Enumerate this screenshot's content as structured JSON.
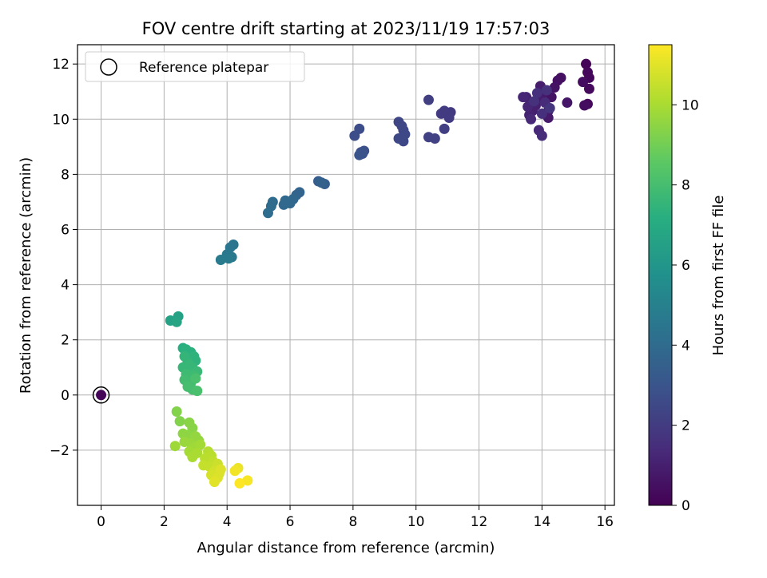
{
  "chart_data": {
    "type": "scatter",
    "title": "FOV centre drift starting at 2023/11/19 17:57:03",
    "xlabel": "Angular distance from reference (arcmin)",
    "ylabel": "Rotation from reference (arcmin)",
    "xlim": [
      -0.75,
      16.3
    ],
    "ylim": [
      -4.0,
      12.7
    ],
    "x_ticks": [
      0,
      2,
      4,
      6,
      8,
      10,
      12,
      14,
      16
    ],
    "y_ticks": [
      -2,
      0,
      2,
      4,
      6,
      8,
      10,
      12
    ],
    "y_tick_labels": [
      "−2",
      "0",
      "2",
      "4",
      "6",
      "8",
      "10",
      "12"
    ],
    "grid": true,
    "legend": {
      "placement": "upper-left",
      "entries": [
        "Reference platepar"
      ]
    },
    "reference_point": {
      "x": 0,
      "y": 0
    },
    "colorbar": {
      "label": "Hours from first FF file",
      "colormap": "viridis",
      "range": [
        0,
        11.5
      ],
      "ticks": [
        0,
        2,
        4,
        6,
        8,
        10
      ]
    },
    "points": [
      {
        "x": 0,
        "y": 0,
        "h": 0.1
      },
      {
        "x": 15.4,
        "y": 12.0,
        "h": 0.1
      },
      {
        "x": 15.45,
        "y": 11.7,
        "h": 0.2
      },
      {
        "x": 15.5,
        "y": 11.5,
        "h": 0.2
      },
      {
        "x": 15.5,
        "y": 11.1,
        "h": 0.3
      },
      {
        "x": 15.45,
        "y": 10.55,
        "h": 0.3
      },
      {
        "x": 15.35,
        "y": 10.5,
        "h": 0.4
      },
      {
        "x": 15.3,
        "y": 11.35,
        "h": 0.4
      },
      {
        "x": 14.6,
        "y": 11.5,
        "h": 0.5
      },
      {
        "x": 14.5,
        "y": 11.4,
        "h": 0.5
      },
      {
        "x": 14.4,
        "y": 11.15,
        "h": 0.6
      },
      {
        "x": 14.3,
        "y": 10.8,
        "h": 0.6
      },
      {
        "x": 14.8,
        "y": 10.6,
        "h": 0.7
      },
      {
        "x": 14.2,
        "y": 10.3,
        "h": 0.7
      },
      {
        "x": 14.2,
        "y": 10.05,
        "h": 0.8
      },
      {
        "x": 14.0,
        "y": 10.9,
        "h": 0.8
      },
      {
        "x": 13.95,
        "y": 11.2,
        "h": 0.9
      },
      {
        "x": 13.9,
        "y": 10.7,
        "h": 0.9
      },
      {
        "x": 13.8,
        "y": 10.5,
        "h": 1.0
      },
      {
        "x": 13.7,
        "y": 10.3,
        "h": 1.0
      },
      {
        "x": 13.6,
        "y": 10.15,
        "h": 1.1
      },
      {
        "x": 13.5,
        "y": 10.8,
        "h": 1.1
      },
      {
        "x": 13.4,
        "y": 10.8,
        "h": 1.2
      },
      {
        "x": 13.55,
        "y": 10.45,
        "h": 1.2
      },
      {
        "x": 13.65,
        "y": 10.0,
        "h": 1.3
      },
      {
        "x": 13.9,
        "y": 9.6,
        "h": 1.3
      },
      {
        "x": 14.0,
        "y": 9.4,
        "h": 1.4
      },
      {
        "x": 14.1,
        "y": 10.6,
        "h": 1.4
      },
      {
        "x": 14.0,
        "y": 10.2,
        "h": 1.5
      },
      {
        "x": 13.85,
        "y": 10.95,
        "h": 1.5
      },
      {
        "x": 14.15,
        "y": 11.05,
        "h": 1.6
      },
      {
        "x": 13.75,
        "y": 10.65,
        "h": 1.6
      },
      {
        "x": 14.25,
        "y": 10.4,
        "h": 1.7
      },
      {
        "x": 11.1,
        "y": 10.25,
        "h": 1.9
      },
      {
        "x": 11.05,
        "y": 10.05,
        "h": 2.0
      },
      {
        "x": 10.9,
        "y": 10.3,
        "h": 2.0
      },
      {
        "x": 10.8,
        "y": 10.2,
        "h": 2.0
      },
      {
        "x": 10.9,
        "y": 9.65,
        "h": 2.1
      },
      {
        "x": 10.4,
        "y": 10.7,
        "h": 2.1
      },
      {
        "x": 10.6,
        "y": 9.3,
        "h": 2.2
      },
      {
        "x": 10.4,
        "y": 9.35,
        "h": 2.2
      },
      {
        "x": 9.6,
        "y": 9.6,
        "h": 2.4
      },
      {
        "x": 9.45,
        "y": 9.9,
        "h": 2.4
      },
      {
        "x": 9.55,
        "y": 9.75,
        "h": 2.4
      },
      {
        "x": 9.65,
        "y": 9.45,
        "h": 2.5
      },
      {
        "x": 9.6,
        "y": 9.2,
        "h": 2.5
      },
      {
        "x": 9.45,
        "y": 9.3,
        "h": 2.5
      },
      {
        "x": 8.2,
        "y": 9.65,
        "h": 2.7
      },
      {
        "x": 8.05,
        "y": 9.4,
        "h": 2.7
      },
      {
        "x": 8.35,
        "y": 8.85,
        "h": 2.8
      },
      {
        "x": 8.25,
        "y": 8.8,
        "h": 2.8
      },
      {
        "x": 8.2,
        "y": 8.7,
        "h": 2.9
      },
      {
        "x": 8.3,
        "y": 8.75,
        "h": 2.9
      },
      {
        "x": 7.1,
        "y": 7.65,
        "h": 3.4
      },
      {
        "x": 6.9,
        "y": 7.75,
        "h": 3.4
      },
      {
        "x": 7.0,
        "y": 7.7,
        "h": 3.5
      },
      {
        "x": 6.3,
        "y": 7.35,
        "h": 3.7
      },
      {
        "x": 6.2,
        "y": 7.25,
        "h": 3.7
      },
      {
        "x": 6.1,
        "y": 7.1,
        "h": 3.8
      },
      {
        "x": 6.0,
        "y": 6.95,
        "h": 3.8
      },
      {
        "x": 5.85,
        "y": 7.05,
        "h": 3.9
      },
      {
        "x": 5.8,
        "y": 6.9,
        "h": 3.9
      },
      {
        "x": 5.45,
        "y": 7.0,
        "h": 4.0
      },
      {
        "x": 5.4,
        "y": 6.85,
        "h": 4.0
      },
      {
        "x": 5.3,
        "y": 6.6,
        "h": 4.1
      },
      {
        "x": 4.2,
        "y": 5.45,
        "h": 4.5
      },
      {
        "x": 4.1,
        "y": 5.35,
        "h": 4.5
      },
      {
        "x": 4.0,
        "y": 5.1,
        "h": 4.6
      },
      {
        "x": 4.15,
        "y": 5.0,
        "h": 4.6
      },
      {
        "x": 4.05,
        "y": 4.95,
        "h": 4.7
      },
      {
        "x": 3.8,
        "y": 4.9,
        "h": 4.7
      },
      {
        "x": 2.45,
        "y": 2.85,
        "h": 6.6
      },
      {
        "x": 2.2,
        "y": 2.7,
        "h": 6.6
      },
      {
        "x": 2.4,
        "y": 2.65,
        "h": 6.7
      },
      {
        "x": 2.6,
        "y": 1.7,
        "h": 7.2
      },
      {
        "x": 2.7,
        "y": 1.65,
        "h": 7.3
      },
      {
        "x": 2.85,
        "y": 1.55,
        "h": 7.3
      },
      {
        "x": 2.95,
        "y": 1.4,
        "h": 7.4
      },
      {
        "x": 3.0,
        "y": 1.25,
        "h": 7.4
      },
      {
        "x": 2.65,
        "y": 1.4,
        "h": 7.5
      },
      {
        "x": 2.75,
        "y": 1.2,
        "h": 7.5
      },
      {
        "x": 2.9,
        "y": 1.0,
        "h": 7.6
      },
      {
        "x": 2.6,
        "y": 1.0,
        "h": 7.6
      },
      {
        "x": 2.8,
        "y": 0.9,
        "h": 7.7
      },
      {
        "x": 3.05,
        "y": 0.85,
        "h": 7.7
      },
      {
        "x": 2.7,
        "y": 0.75,
        "h": 7.8
      },
      {
        "x": 2.95,
        "y": 0.7,
        "h": 7.8
      },
      {
        "x": 2.65,
        "y": 0.55,
        "h": 7.9
      },
      {
        "x": 2.85,
        "y": 0.45,
        "h": 7.9
      },
      {
        "x": 2.75,
        "y": 0.3,
        "h": 8.0
      },
      {
        "x": 2.9,
        "y": 0.2,
        "h": 8.0
      },
      {
        "x": 3.05,
        "y": 0.15,
        "h": 8.1
      },
      {
        "x": 3.0,
        "y": 0.6,
        "h": 8.1
      },
      {
        "x": 2.8,
        "y": 1.1,
        "h": 7.6
      },
      {
        "x": 2.4,
        "y": -0.6,
        "h": 9.3
      },
      {
        "x": 2.5,
        "y": -0.95,
        "h": 9.3
      },
      {
        "x": 2.8,
        "y": -1.0,
        "h": 9.4
      },
      {
        "x": 2.9,
        "y": -1.2,
        "h": 9.4
      },
      {
        "x": 2.6,
        "y": -1.4,
        "h": 9.5
      },
      {
        "x": 2.75,
        "y": -1.45,
        "h": 9.5
      },
      {
        "x": 3.0,
        "y": -1.5,
        "h": 9.6
      },
      {
        "x": 3.1,
        "y": -1.65,
        "h": 9.6
      },
      {
        "x": 2.65,
        "y": -1.7,
        "h": 9.7
      },
      {
        "x": 2.85,
        "y": -1.75,
        "h": 9.7
      },
      {
        "x": 2.35,
        "y": -1.85,
        "h": 9.8
      },
      {
        "x": 2.95,
        "y": -1.9,
        "h": 9.8
      },
      {
        "x": 3.15,
        "y": -1.8,
        "h": 9.9
      },
      {
        "x": 2.8,
        "y": -2.05,
        "h": 9.9
      },
      {
        "x": 3.05,
        "y": -2.1,
        "h": 10.0
      },
      {
        "x": 2.9,
        "y": -2.25,
        "h": 10.0
      },
      {
        "x": 3.4,
        "y": -2.05,
        "h": 10.2
      },
      {
        "x": 3.5,
        "y": -2.2,
        "h": 10.3
      },
      {
        "x": 3.3,
        "y": -2.3,
        "h": 10.3
      },
      {
        "x": 3.55,
        "y": -2.4,
        "h": 10.4
      },
      {
        "x": 3.25,
        "y": -2.55,
        "h": 10.5
      },
      {
        "x": 3.45,
        "y": -2.6,
        "h": 10.5
      },
      {
        "x": 3.7,
        "y": -2.5,
        "h": 10.6
      },
      {
        "x": 3.6,
        "y": -2.75,
        "h": 10.7
      },
      {
        "x": 3.75,
        "y": -2.85,
        "h": 10.8
      },
      {
        "x": 3.5,
        "y": -2.9,
        "h": 10.8
      },
      {
        "x": 3.7,
        "y": -3.0,
        "h": 10.9
      },
      {
        "x": 3.6,
        "y": -3.15,
        "h": 11.0
      },
      {
        "x": 3.8,
        "y": -2.7,
        "h": 10.9
      },
      {
        "x": 4.35,
        "y": -2.65,
        "h": 11.2
      },
      {
        "x": 4.25,
        "y": -2.75,
        "h": 11.3
      },
      {
        "x": 4.65,
        "y": -3.1,
        "h": 11.4
      },
      {
        "x": 4.4,
        "y": -3.2,
        "h": 11.5
      }
    ]
  }
}
